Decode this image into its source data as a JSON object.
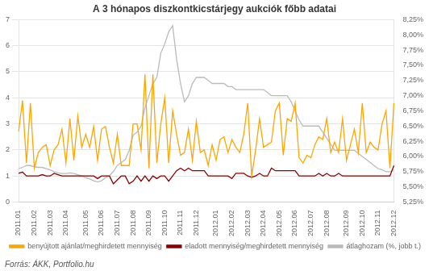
{
  "chart_data": {
    "type": "line",
    "title": "A 3 hónapos diszkontkicstárjegy aukciók főbb adatai",
    "annotations": [
      "Forrás: ÁKK, Portfolio.hu"
    ],
    "categories": [
      "2011.01",
      null,
      null,
      null,
      "2011.02",
      null,
      null,
      null,
      "2011.03",
      null,
      null,
      null,
      "2011.04",
      null,
      null,
      null,
      null,
      "2011.05",
      null,
      null,
      null,
      "2011.06",
      null,
      null,
      null,
      "2011.07",
      null,
      null,
      null,
      "2011.08",
      null,
      null,
      null,
      "2011.09",
      null,
      null,
      null,
      "2011.10",
      null,
      null,
      null,
      "2011.11",
      null,
      null,
      null,
      "2011.12",
      null,
      null,
      null,
      null,
      "2012.01",
      null,
      null,
      null,
      "2012.02",
      null,
      null,
      null,
      "2012.03",
      null,
      null,
      null,
      "2012.04",
      null,
      null,
      null,
      "2012.05",
      null,
      null,
      null,
      "2012.06",
      null,
      null,
      null,
      "2012.07",
      null,
      null,
      null,
      "2012.08",
      null,
      null,
      null,
      null,
      "2012.09",
      null,
      null,
      null,
      "2012.10",
      null,
      null,
      null,
      "2012.11",
      null,
      null,
      null,
      "2012.12"
    ],
    "series": [
      {
        "name": "benyújtott ajánlat/meghirdetett mennyiség",
        "color": "#FFA500",
        "axis": "y",
        "values": [
          2.7,
          3.9,
          1.5,
          3.8,
          1.3,
          1.9,
          2.1,
          2.2,
          1.4,
          2.0,
          2.2,
          2.8,
          1.5,
          3.2,
          1.6,
          3.3,
          2.1,
          2.6,
          2.1,
          2.9,
          1.6,
          2.8,
          2.9,
          2.1,
          1.5,
          2.6,
          1.4,
          1.4,
          1.4,
          3.0,
          3.0,
          2.0,
          4.9,
          1.3,
          4.9,
          1.5,
          3.0,
          4.0,
          1.5,
          3.5,
          2.6,
          1.8,
          1.9,
          2.8,
          1.6,
          3.1,
          1.9,
          2.0,
          1.4,
          2.2,
          1.6,
          2.4,
          2.5,
          1.9,
          2.4,
          2.1,
          1.9,
          2.6,
          3.8,
          1.0,
          2.0,
          3.2,
          2.1,
          2.2,
          2.3,
          3.5,
          3.8,
          1.8,
          3.2,
          3.1,
          3.8,
          1.7,
          1.5,
          1.8,
          1.7,
          2.2,
          2.5,
          2.4,
          3.2,
          1.9,
          2.3,
          1.9,
          3.2,
          1.6,
          2.2,
          2.8,
          1.9,
          3.8,
          1.9,
          2.3,
          2.1,
          2.0,
          3.0,
          3.5,
          1.3,
          3.8
        ]
      },
      {
        "name": "eladott mennyiség/meghirdetett mennyiség",
        "color": "#8B0000",
        "axis": "y",
        "values": [
          1.1,
          1.15,
          1.0,
          1.0,
          1.0,
          1.0,
          1.05,
          1.0,
          1.0,
          1.1,
          1.05,
          1.0,
          1.0,
          1.0,
          1.0,
          1.0,
          1.0,
          1.0,
          1.0,
          1.0,
          0.9,
          1.0,
          1.0,
          1.0,
          0.7,
          0.85,
          1.0,
          1.0,
          0.7,
          0.8,
          1.0,
          0.8,
          1.0,
          0.8,
          1.0,
          0.9,
          1.0,
          1.0,
          0.8,
          1.0,
          1.2,
          1.3,
          1.2,
          1.3,
          1.2,
          1.2,
          1.2,
          1.2,
          1.0,
          1.0,
          1.0,
          1.0,
          1.0,
          1.0,
          0.9,
          1.1,
          1.1,
          1.1,
          1.0,
          0.95,
          1.0,
          1.1,
          1.0,
          1.0,
          1.3,
          1.2,
          1.2,
          1.2,
          1.2,
          1.2,
          1.2,
          1.0,
          1.0,
          1.0,
          1.0,
          1.0,
          1.1,
          1.0,
          1.1,
          1.0,
          1.0,
          1.1,
          1.0,
          1.0,
          1.0,
          1.0,
          1.0,
          1.0,
          1.0,
          1.0,
          1.0,
          1.0,
          1.0,
          1.0,
          1.0,
          1.4
        ]
      },
      {
        "name": "átlaghozam (%, jobb t.)",
        "color": "#BBBBBB",
        "axis": "y2",
        "values": [
          5.8,
          5.82,
          5.85,
          5.85,
          5.83,
          5.82,
          5.82,
          5.8,
          5.78,
          5.75,
          5.73,
          5.72,
          5.72,
          5.73,
          5.72,
          5.7,
          5.68,
          5.65,
          5.63,
          5.6,
          5.58,
          5.6,
          5.65,
          5.68,
          5.75,
          5.85,
          5.9,
          5.95,
          6.1,
          6.35,
          6.4,
          6.5,
          6.8,
          7.0,
          7.2,
          7.3,
          7.7,
          7.85,
          8.05,
          8.15,
          7.6,
          7.2,
          6.9,
          7.0,
          7.2,
          7.3,
          7.3,
          7.3,
          7.25,
          7.2,
          7.2,
          7.2,
          7.2,
          7.15,
          7.15,
          7.1,
          7.1,
          7.1,
          7.1,
          7.1,
          7.1,
          7.1,
          7.1,
          7.05,
          7.0,
          7.0,
          7.0,
          7.0,
          7.0,
          6.9,
          6.75,
          6.6,
          6.5,
          6.5,
          6.5,
          6.5,
          6.5,
          6.4,
          6.3,
          6.2,
          6.1,
          6.1,
          6.1,
          6.1,
          6.1,
          6.1,
          6.05,
          6.0,
          5.95,
          5.9,
          5.85,
          5.8,
          5.78,
          5.75,
          5.75,
          5.78
        ]
      }
    ],
    "ylim": [
      0,
      7
    ],
    "yticks": [
      0,
      1,
      2,
      3,
      4,
      5,
      6,
      7
    ],
    "y2lim": [
      5.25,
      8.25
    ],
    "y2ticks": [
      {
        "value": 5.25,
        "label": "5,25%"
      },
      {
        "value": 5.5,
        "label": "5,50%"
      },
      {
        "value": 5.75,
        "label": "5,75%"
      },
      {
        "value": 6.0,
        "label": "6,00%"
      },
      {
        "value": 6.25,
        "label": "6,25%"
      },
      {
        "value": 6.5,
        "label": "6,50%"
      },
      {
        "value": 6.75,
        "label": "6,75%"
      },
      {
        "value": 7.0,
        "label": "7,00%"
      },
      {
        "value": 7.25,
        "label": "7,25%"
      },
      {
        "value": 7.5,
        "label": "7,50%"
      },
      {
        "value": 7.75,
        "label": "7,75%"
      },
      {
        "value": 8.0,
        "label": "8,00%"
      },
      {
        "value": 8.25,
        "label": "8,25%"
      }
    ],
    "grid": true,
    "legend": "bottom"
  }
}
